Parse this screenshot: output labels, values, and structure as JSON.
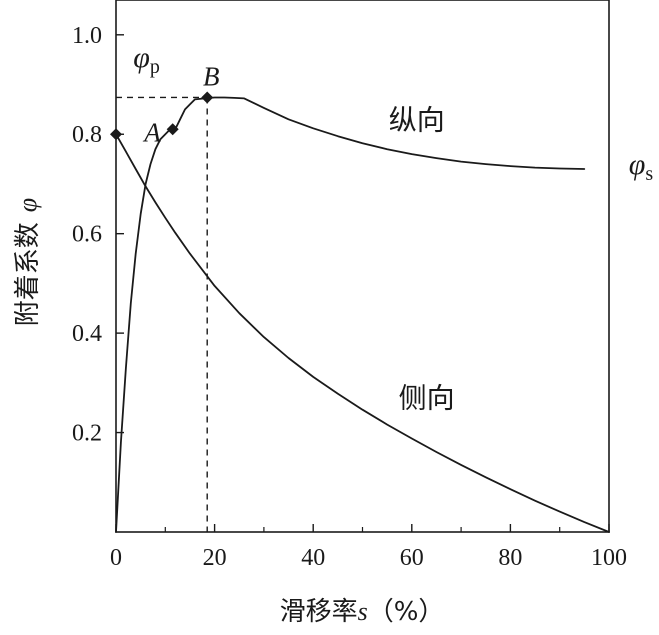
{
  "chart_data": {
    "type": "line",
    "title": "",
    "xlabel": {
      "text": "滑移率",
      "symbol": "s",
      "unit": "（%）"
    },
    "ylabel": {
      "text": "附着系数",
      "symbol": "φ"
    },
    "xlim": [
      0,
      100
    ],
    "ylim": [
      0,
      1.07
    ],
    "x_ticks": [
      0,
      20,
      40,
      60,
      80,
      100
    ],
    "y_ticks": [
      0.2,
      0.4,
      0.6,
      0.8,
      1.0
    ],
    "x_tick_labels": [
      "0",
      "20",
      "40",
      "60",
      "80",
      "100"
    ],
    "y_tick_labels": [
      "0.2",
      "0.4",
      "0.6",
      "0.8",
      "1.0"
    ],
    "grid": false,
    "series": [
      {
        "name": "纵向",
        "x": [
          0,
          1,
          2,
          3,
          4,
          5,
          6,
          7,
          8,
          9,
          10,
          11,
          12,
          13,
          14,
          15,
          16,
          17,
          18,
          19,
          20,
          21,
          22,
          24,
          26,
          30,
          35,
          40,
          45,
          50,
          55,
          60,
          65,
          70,
          75,
          80,
          85,
          90,
          95
        ],
        "y": [
          0.0,
          0.18,
          0.33,
          0.46,
          0.56,
          0.64,
          0.7,
          0.74,
          0.77,
          0.79,
          0.8,
          0.81,
          0.81,
          0.83,
          0.85,
          0.86,
          0.87,
          0.871,
          0.872,
          0.873,
          0.874,
          0.874,
          0.874,
          0.873,
          0.872,
          0.853,
          0.83,
          0.812,
          0.796,
          0.782,
          0.77,
          0.76,
          0.752,
          0.745,
          0.74,
          0.736,
          0.733,
          0.731,
          0.73
        ]
      },
      {
        "name": "侧向",
        "x": [
          0,
          2,
          4,
          6,
          8,
          10,
          12,
          15,
          20,
          25,
          30,
          35,
          40,
          45,
          50,
          55,
          60,
          65,
          70,
          75,
          80,
          85,
          90,
          95,
          100
        ],
        "y": [
          0.8,
          0.765,
          0.73,
          0.695,
          0.663,
          0.632,
          0.602,
          0.56,
          0.495,
          0.44,
          0.392,
          0.35,
          0.312,
          0.278,
          0.246,
          0.216,
          0.188,
          0.161,
          0.135,
          0.11,
          0.086,
          0.063,
          0.041,
          0.02,
          0.0
        ]
      }
    ],
    "points": [
      {
        "label": "",
        "x": 0,
        "y": 0.8
      },
      {
        "label": "A",
        "x": 11.5,
        "y": 0.81
      },
      {
        "label": "B",
        "x": 18.5,
        "y": 0.874
      }
    ],
    "reference": {
      "x": 18.5,
      "y": 0.874
    },
    "annotations": {
      "phi_p": {
        "symbol": "φ",
        "sub": "p",
        "x": 3.5,
        "y": 0.935
      },
      "phi_s": {
        "symbol": "φ",
        "sub": "s",
        "x": 104,
        "y": 0.72
      },
      "curve_longitudinal": {
        "text": "纵向",
        "x": 61,
        "y": 0.81
      },
      "curve_lateral": {
        "text": "侧向",
        "x": 63,
        "y": 0.25
      }
    }
  }
}
